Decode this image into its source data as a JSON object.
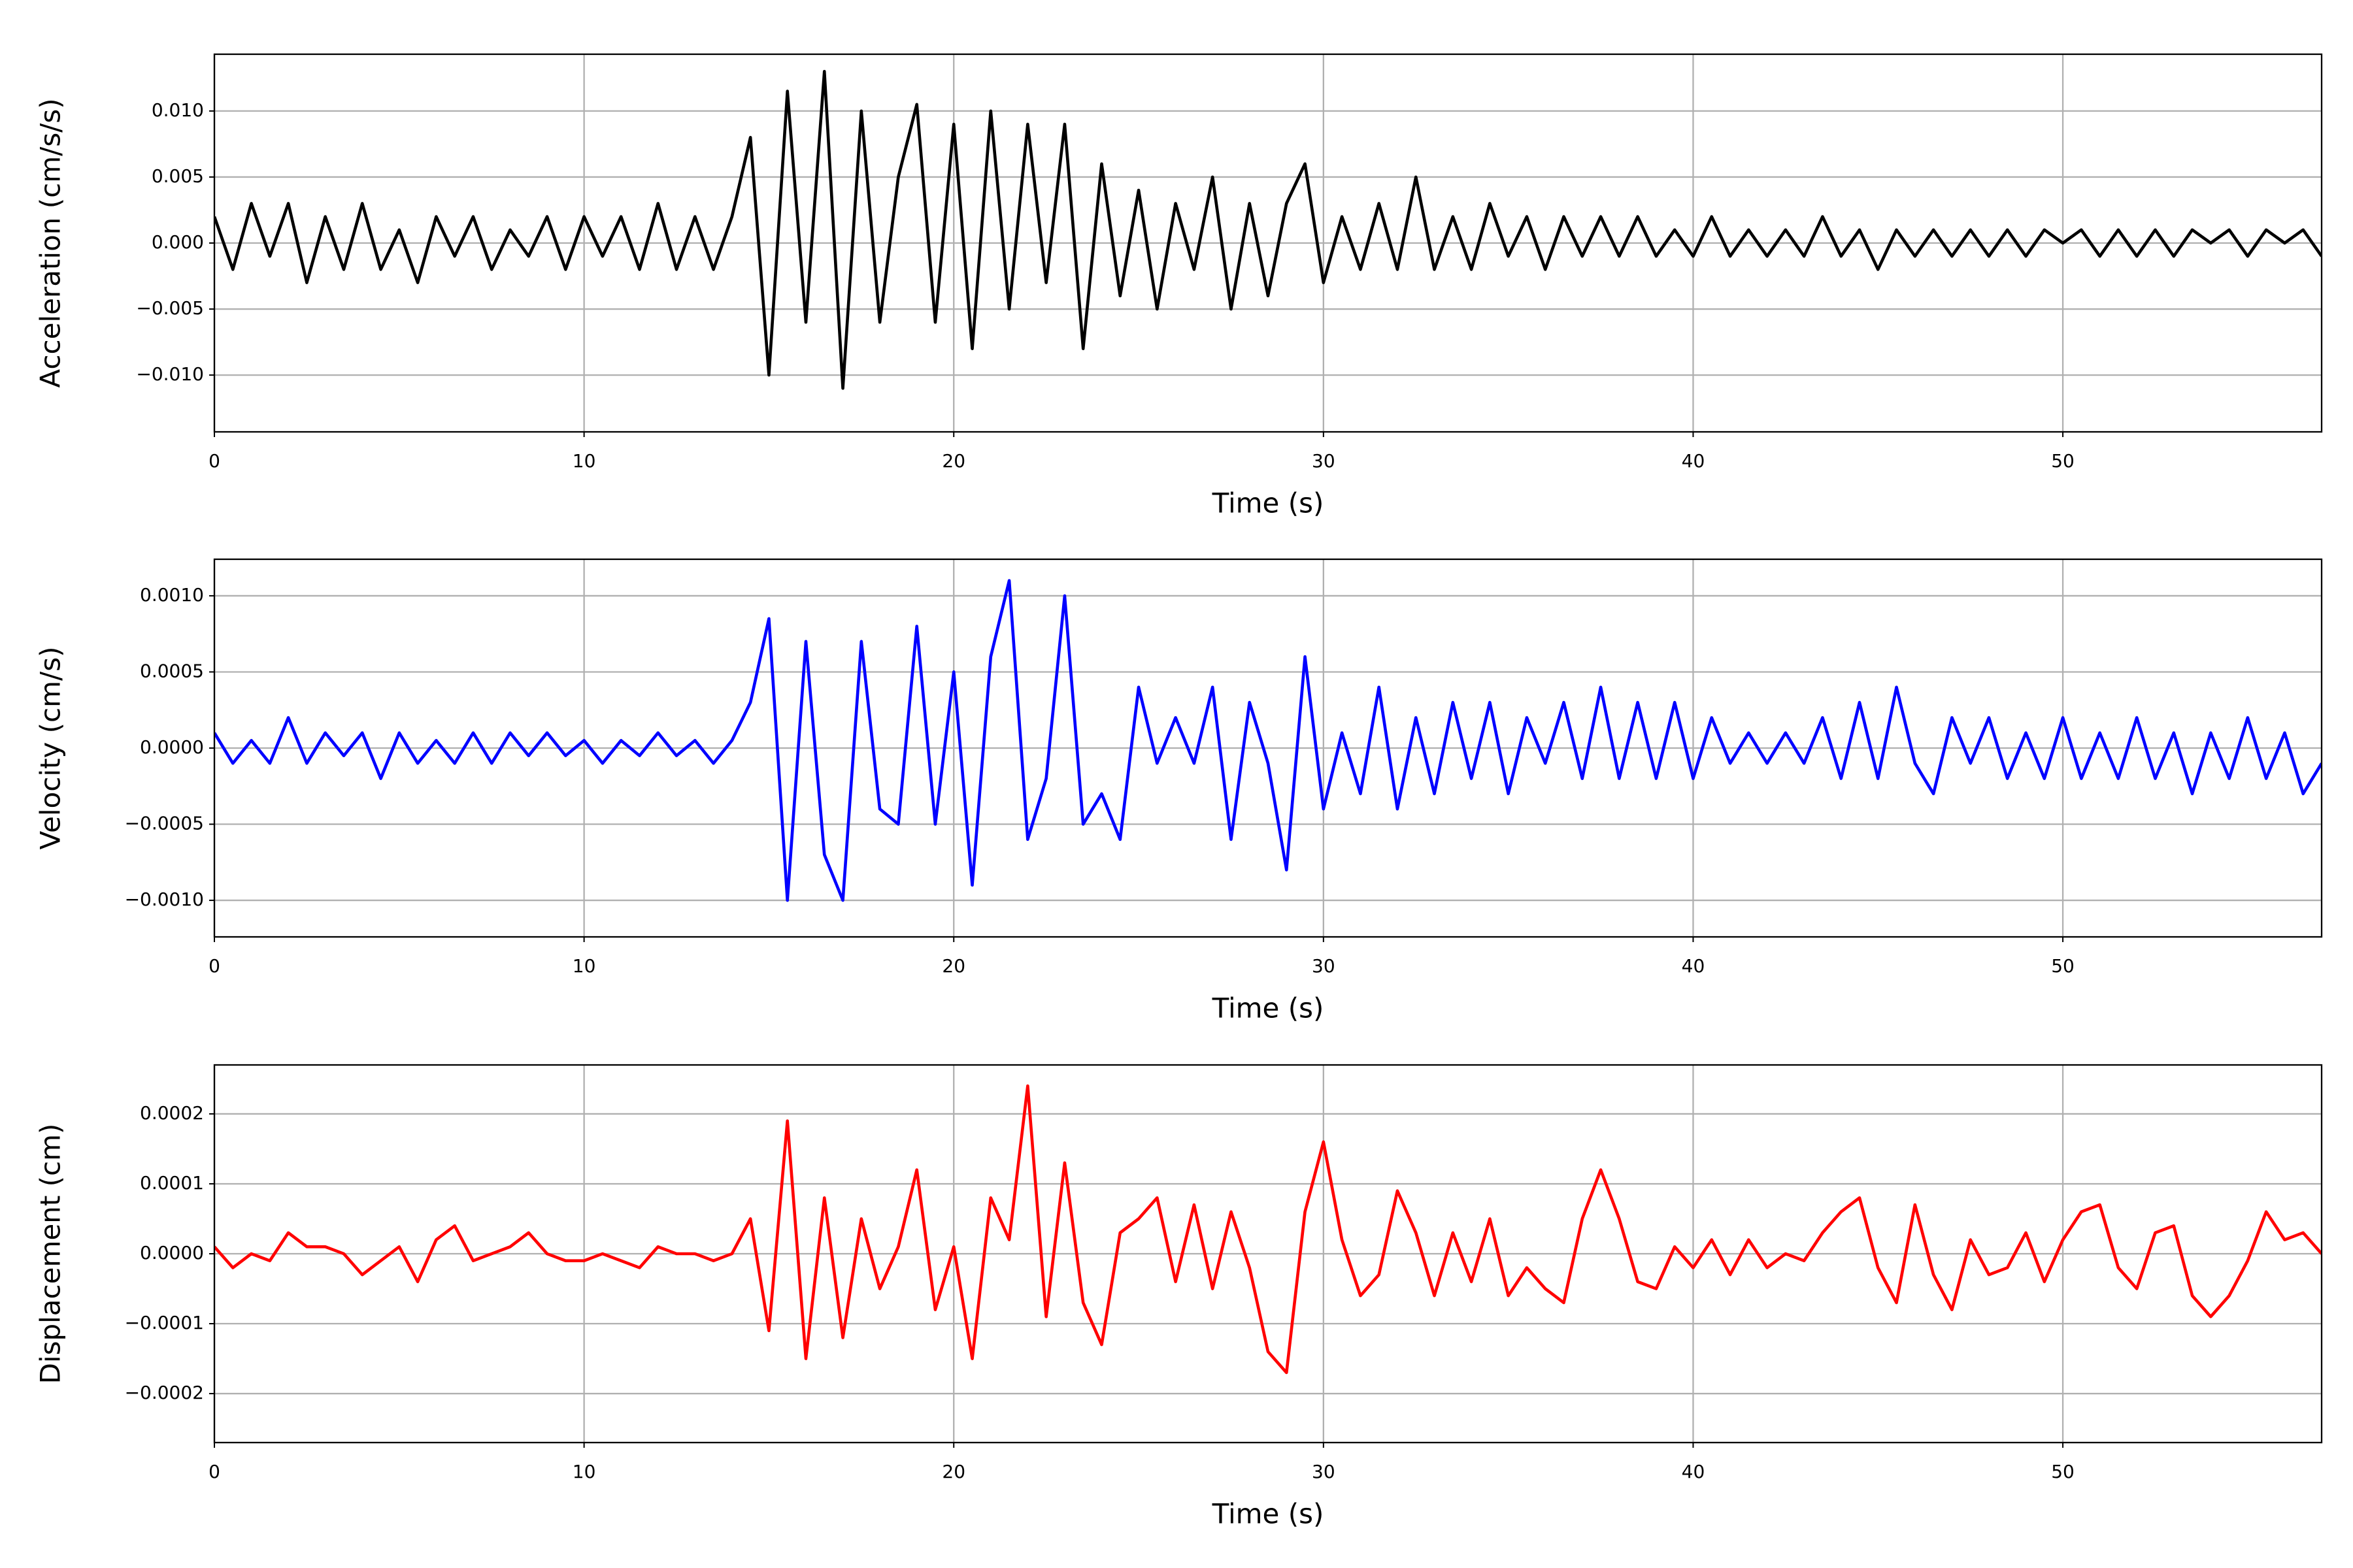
{
  "chart_data": [
    {
      "type": "line",
      "ylabel": "Acceleration (cm/s/s)",
      "xlabel": "Time (s)",
      "color": "#000000",
      "grid": true,
      "xlim": [
        0,
        57
      ],
      "xticks": [
        0,
        10,
        20,
        30,
        40,
        50
      ],
      "ylim": [
        -0.0143,
        0.0143
      ],
      "yticks": [
        {
          "value": -0.01,
          "label": "−0.010"
        },
        {
          "value": -0.005,
          "label": "−0.005"
        },
        {
          "value": 0,
          "label": "0.000"
        },
        {
          "value": 0.005,
          "label": "0.005"
        },
        {
          "value": 0.01,
          "label": "0.010"
        }
      ],
      "x": [
        0,
        0.5,
        1,
        1.5,
        2,
        2.5,
        3,
        3.5,
        4,
        4.5,
        5,
        5.5,
        6,
        6.5,
        7,
        7.5,
        8,
        8.5,
        9,
        9.5,
        10,
        10.5,
        11,
        11.5,
        12,
        12.5,
        13,
        13.5,
        14,
        14.5,
        15,
        15.5,
        16,
        16.5,
        17,
        17.5,
        18,
        18.5,
        19,
        19.5,
        20,
        20.5,
        21,
        21.5,
        22,
        22.5,
        23,
        23.5,
        24,
        24.5,
        25,
        25.5,
        26,
        26.5,
        27,
        27.5,
        28,
        28.5,
        29,
        29.5,
        30,
        30.5,
        31,
        31.5,
        32,
        32.5,
        33,
        33.5,
        34,
        34.5,
        35,
        35.5,
        36,
        36.5,
        37,
        37.5,
        38,
        38.5,
        39,
        39.5,
        40,
        40.5,
        41,
        41.5,
        42,
        42.5,
        43,
        43.5,
        44,
        44.5,
        45,
        45.5,
        46,
        46.5,
        47,
        47.5,
        48,
        48.5,
        49,
        49.5,
        50,
        50.5,
        51,
        51.5,
        52,
        52.5,
        53,
        53.5,
        54,
        54.5,
        55,
        55.5,
        56,
        56.5,
        57
      ],
      "values": [
        0.002,
        -0.002,
        0.003,
        -0.001,
        0.003,
        -0.003,
        0.002,
        -0.002,
        0.003,
        -0.002,
        0.001,
        -0.003,
        0.002,
        -0.001,
        0.002,
        -0.002,
        0.001,
        -0.001,
        0.002,
        -0.002,
        0.002,
        -0.001,
        0.002,
        -0.002,
        0.003,
        -0.002,
        0.002,
        -0.002,
        0.002,
        0.008,
        -0.01,
        0.0115,
        -0.006,
        0.013,
        -0.011,
        0.01,
        -0.006,
        0.005,
        0.0105,
        -0.006,
        0.009,
        -0.008,
        0.01,
        -0.005,
        0.009,
        -0.003,
        0.009,
        -0.008,
        0.006,
        -0.004,
        0.004,
        -0.005,
        0.003,
        -0.002,
        0.005,
        -0.005,
        0.003,
        -0.004,
        0.003,
        0.006,
        -0.003,
        0.002,
        -0.002,
        0.003,
        -0.002,
        0.005,
        -0.002,
        0.002,
        -0.002,
        0.003,
        -0.001,
        0.002,
        -0.002,
        0.002,
        -0.001,
        0.002,
        -0.001,
        0.002,
        -0.001,
        0.001,
        -0.001,
        0.002,
        -0.001,
        0.001,
        -0.001,
        0.001,
        -0.001,
        0.002,
        -0.001,
        0.001,
        -0.002,
        0.001,
        -0.001,
        0.001,
        -0.001,
        0.001,
        -0.001,
        0.001,
        -0.001,
        0.001,
        0,
        0.001,
        -0.001,
        0.001,
        -0.001,
        0.001,
        -0.001,
        0.001,
        0,
        0.001,
        -0.001,
        0.001,
        0,
        0.001,
        -0.001
      ]
    },
    {
      "type": "line",
      "ylabel": "Velocity (cm/s)",
      "xlabel": "Time (s)",
      "color": "#0000ff",
      "grid": true,
      "xlim": [
        0,
        57
      ],
      "xticks": [
        0,
        10,
        20,
        30,
        40,
        50
      ],
      "ylim": [
        -0.00124,
        0.00124
      ],
      "yticks": [
        {
          "value": -0.001,
          "label": "−0.0010"
        },
        {
          "value": -0.0005,
          "label": "−0.0005"
        },
        {
          "value": 0,
          "label": "0.0000"
        },
        {
          "value": 0.0005,
          "label": "0.0005"
        },
        {
          "value": 0.001,
          "label": "0.0010"
        }
      ],
      "x": [
        0,
        0.5,
        1,
        1.5,
        2,
        2.5,
        3,
        3.5,
        4,
        4.5,
        5,
        5.5,
        6,
        6.5,
        7,
        7.5,
        8,
        8.5,
        9,
        9.5,
        10,
        10.5,
        11,
        11.5,
        12,
        12.5,
        13,
        13.5,
        14,
        14.5,
        15,
        15.5,
        16,
        16.5,
        17,
        17.5,
        18,
        18.5,
        19,
        19.5,
        20,
        20.5,
        21,
        21.5,
        22,
        22.5,
        23,
        23.5,
        24,
        24.5,
        25,
        25.5,
        26,
        26.5,
        27,
        27.5,
        28,
        28.5,
        29,
        29.5,
        30,
        30.5,
        31,
        31.5,
        32,
        32.5,
        33,
        33.5,
        34,
        34.5,
        35,
        35.5,
        36,
        36.5,
        37,
        37.5,
        38,
        38.5,
        39,
        39.5,
        40,
        40.5,
        41,
        41.5,
        42,
        42.5,
        43,
        43.5,
        44,
        44.5,
        45,
        45.5,
        46,
        46.5,
        47,
        47.5,
        48,
        48.5,
        49,
        49.5,
        50,
        50.5,
        51,
        51.5,
        52,
        52.5,
        53,
        53.5,
        54,
        54.5,
        55,
        55.5,
        56,
        56.5,
        57
      ],
      "values": [
        0.0001,
        -0.0001,
        5e-05,
        -0.0001,
        0.0002,
        -0.0001,
        0.0001,
        -5e-05,
        0.0001,
        -0.0002,
        0.0001,
        -0.0001,
        5e-05,
        -0.0001,
        0.0001,
        -0.0001,
        0.0001,
        -5e-05,
        0.0001,
        -5e-05,
        5e-05,
        -0.0001,
        5e-05,
        -5e-05,
        0.0001,
        -5e-05,
        5e-05,
        -0.0001,
        5e-05,
        0.0003,
        0.00085,
        -0.001,
        0.0007,
        -0.0007,
        -0.001,
        0.0007,
        -0.0004,
        -0.0005,
        0.0008,
        -0.0005,
        0.0005,
        -0.0009,
        0.0006,
        0.0011,
        -0.0006,
        -0.0002,
        0.001,
        -0.0005,
        -0.0003,
        -0.0006,
        0.0004,
        -0.0001,
        0.0002,
        -0.0001,
        0.0004,
        -0.0006,
        0.0003,
        -0.0001,
        -0.0008,
        0.0006,
        -0.0004,
        0.0001,
        -0.0003,
        0.0004,
        -0.0004,
        0.0002,
        -0.0003,
        0.0003,
        -0.0002,
        0.0003,
        -0.0003,
        0.0002,
        -0.0001,
        0.0003,
        -0.0002,
        0.0004,
        -0.0002,
        0.0003,
        -0.0002,
        0.0003,
        -0.0002,
        0.0002,
        -0.0001,
        0.0001,
        -0.0001,
        0.0001,
        -0.0001,
        0.0002,
        -0.0002,
        0.0003,
        -0.0002,
        0.0004,
        -0.0001,
        -0.0003,
        0.0002,
        -0.0001,
        0.0002,
        -0.0002,
        0.0001,
        -0.0002,
        0.0002,
        -0.0002,
        0.0001,
        -0.0002,
        0.0002,
        -0.0002,
        0.0001,
        -0.0003,
        0.0001,
        -0.0002,
        0.0002,
        -0.0002,
        0.0001,
        -0.0003,
        -0.0001
      ]
    },
    {
      "type": "line",
      "ylabel": "Displacement (cm)",
      "xlabel": "Time (s)",
      "color": "#ff0000",
      "grid": true,
      "xlim": [
        0,
        57
      ],
      "xticks": [
        0,
        10,
        20,
        30,
        40,
        50
      ],
      "ylim": [
        -0.00027,
        0.00027
      ],
      "yticks": [
        {
          "value": -0.0002,
          "label": "−0.0002"
        },
        {
          "value": -0.0001,
          "label": "−0.0001"
        },
        {
          "value": 0,
          "label": "0.0000"
        },
        {
          "value": 0.0001,
          "label": "0.0001"
        },
        {
          "value": 0.0002,
          "label": "0.0002"
        }
      ],
      "x": [
        0,
        0.5,
        1,
        1.5,
        2,
        2.5,
        3,
        3.5,
        4,
        4.5,
        5,
        5.5,
        6,
        6.5,
        7,
        7.5,
        8,
        8.5,
        9,
        9.5,
        10,
        10.5,
        11,
        11.5,
        12,
        12.5,
        13,
        13.5,
        14,
        14.5,
        15,
        15.5,
        16,
        16.5,
        17,
        17.5,
        18,
        18.5,
        19,
        19.5,
        20,
        20.5,
        21,
        21.5,
        22,
        22.5,
        23,
        23.5,
        24,
        24.5,
        25,
        25.5,
        26,
        26.5,
        27,
        27.5,
        28,
        28.5,
        29,
        29.5,
        30,
        30.5,
        31,
        31.5,
        32,
        32.5,
        33,
        33.5,
        34,
        34.5,
        35,
        35.5,
        36,
        36.5,
        37,
        37.5,
        38,
        38.5,
        39,
        39.5,
        40,
        40.5,
        41,
        41.5,
        42,
        42.5,
        43,
        43.5,
        44,
        44.5,
        45,
        45.5,
        46,
        46.5,
        47,
        47.5,
        48,
        48.5,
        49,
        49.5,
        50,
        50.5,
        51,
        51.5,
        52,
        52.5,
        53,
        53.5,
        54,
        54.5,
        55,
        55.5,
        56,
        56.5,
        57
      ],
      "values": [
        1e-05,
        -2e-05,
        0,
        -1e-05,
        3e-05,
        1e-05,
        1e-05,
        0,
        -3e-05,
        -1e-05,
        1e-05,
        -4e-05,
        2e-05,
        4e-05,
        -1e-05,
        0,
        1e-05,
        3e-05,
        0,
        -1e-05,
        -1e-05,
        0,
        -1e-05,
        -2e-05,
        1e-05,
        0,
        0,
        -1e-05,
        0,
        5e-05,
        -0.00011,
        0.00019,
        -0.00015,
        8e-05,
        -0.00012,
        5e-05,
        -5e-05,
        1e-05,
        0.00012,
        -8e-05,
        1e-05,
        -0.00015,
        8e-05,
        2e-05,
        0.00024,
        -9e-05,
        0.00013,
        -7e-05,
        -0.00013,
        3e-05,
        5e-05,
        8e-05,
        -4e-05,
        7e-05,
        -5e-05,
        6e-05,
        -2e-05,
        -0.00014,
        -0.00017,
        6e-05,
        0.00016,
        2e-05,
        -6e-05,
        -3e-05,
        9e-05,
        3e-05,
        -6e-05,
        3e-05,
        -4e-05,
        5e-05,
        -6e-05,
        -2e-05,
        -5e-05,
        -7e-05,
        5e-05,
        0.00012,
        5e-05,
        -4e-05,
        -5e-05,
        1e-05,
        -2e-05,
        2e-05,
        -3e-05,
        2e-05,
        -2e-05,
        0,
        -1e-05,
        3e-05,
        6e-05,
        8e-05,
        -2e-05,
        -7e-05,
        7e-05,
        -3e-05,
        -8e-05,
        2e-05,
        -3e-05,
        -2e-05,
        3e-05,
        -4e-05,
        2e-05,
        6e-05,
        7e-05,
        -2e-05,
        -5e-05,
        3e-05,
        4e-05,
        -6e-05,
        -9e-05,
        -6e-05,
        -1e-05,
        6e-05,
        2e-05,
        3e-05,
        0
      ]
    }
  ]
}
